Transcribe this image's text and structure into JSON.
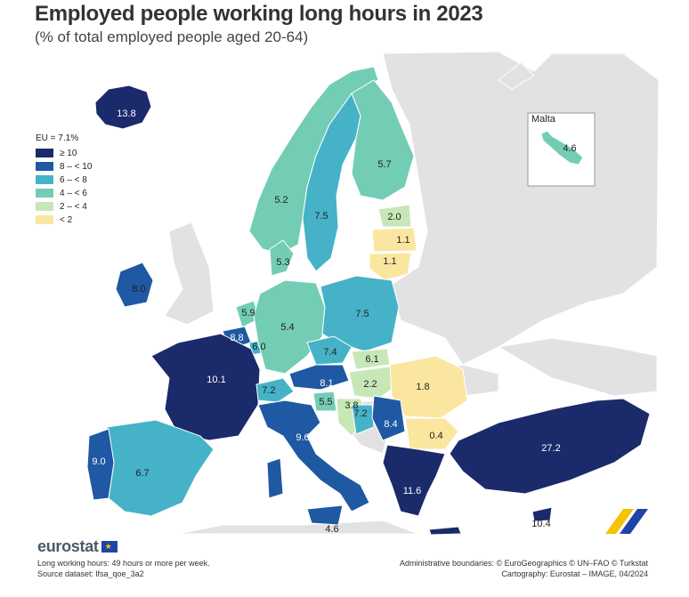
{
  "title": "Employed people working long hours in 2023",
  "subtitle": "(% of total employed people aged 20-64)",
  "legend": {
    "header": "EU = 7.1%",
    "classes": [
      {
        "label": "≥ 10",
        "color": "#1b2a6b"
      },
      {
        "label": "8 – < 10",
        "color": "#1f58a3"
      },
      {
        "label": "6 – < 8",
        "color": "#45b2c8"
      },
      {
        "label": "4 – < 6",
        "color": "#73cdb4"
      },
      {
        "label": "2 – < 4",
        "color": "#c8e7b6"
      },
      {
        "label": "< 2",
        "color": "#fbe6a0"
      }
    ]
  },
  "inset_title": "Malta",
  "map_data": [
    {
      "country": "Iceland",
      "value": "13.8"
    },
    {
      "country": "Norway",
      "value": "5.2"
    },
    {
      "country": "Sweden",
      "value": "7.5"
    },
    {
      "country": "Finland",
      "value": "5.7"
    },
    {
      "country": "Estonia",
      "value": "2.0"
    },
    {
      "country": "Latvia",
      "value": "1.1"
    },
    {
      "country": "Lithuania",
      "value": "1.1"
    },
    {
      "country": "Denmark",
      "value": "5.3"
    },
    {
      "country": "Ireland",
      "value": "8.0"
    },
    {
      "country": "Netherlands",
      "value": "5.9"
    },
    {
      "country": "Belgium",
      "value": "8.8"
    },
    {
      "country": "Luxembourg",
      "value": "6.0"
    },
    {
      "country": "Germany",
      "value": "5.4"
    },
    {
      "country": "Poland",
      "value": "7.5"
    },
    {
      "country": "Czechia",
      "value": "7.4"
    },
    {
      "country": "Slovakia",
      "value": "6.1"
    },
    {
      "country": "Austria",
      "value": "8.1"
    },
    {
      "country": "Hungary",
      "value": "2.2"
    },
    {
      "country": "Romania",
      "value": "1.8"
    },
    {
      "country": "France",
      "value": "10.1"
    },
    {
      "country": "Switzerland",
      "value": "7.2"
    },
    {
      "country": "Slovenia",
      "value": "5.5"
    },
    {
      "country": "Croatia",
      "value": "3.8"
    },
    {
      "country": "Bosnia and Herzegovina",
      "value": "7.2"
    },
    {
      "country": "Serbia",
      "value": "8.4"
    },
    {
      "country": "Bulgaria",
      "value": "0.4"
    },
    {
      "country": "Italy",
      "value": "9.6"
    },
    {
      "country": "Portugal",
      "value": "9.0"
    },
    {
      "country": "Spain",
      "value": "6.7"
    },
    {
      "country": "Greece",
      "value": "11.6"
    },
    {
      "country": "Türkiye",
      "value": "27.2"
    },
    {
      "country": "Malta",
      "value": "4.6"
    },
    {
      "country": "Cyprus",
      "value": "10.4"
    },
    {
      "country": "Italy islands",
      "value": "4.6"
    }
  ],
  "brand": "eurostat",
  "footer_left": [
    "Long working hours: 49 hours or more per week.",
    "Source dataset: lfsa_qoe_3a2"
  ],
  "footer_right": [
    "Administrative boundaries: © EuroGeographics © UN–FAO © Turkstat",
    "Cartography: Eurostat – IMAGE, 04/2024"
  ]
}
